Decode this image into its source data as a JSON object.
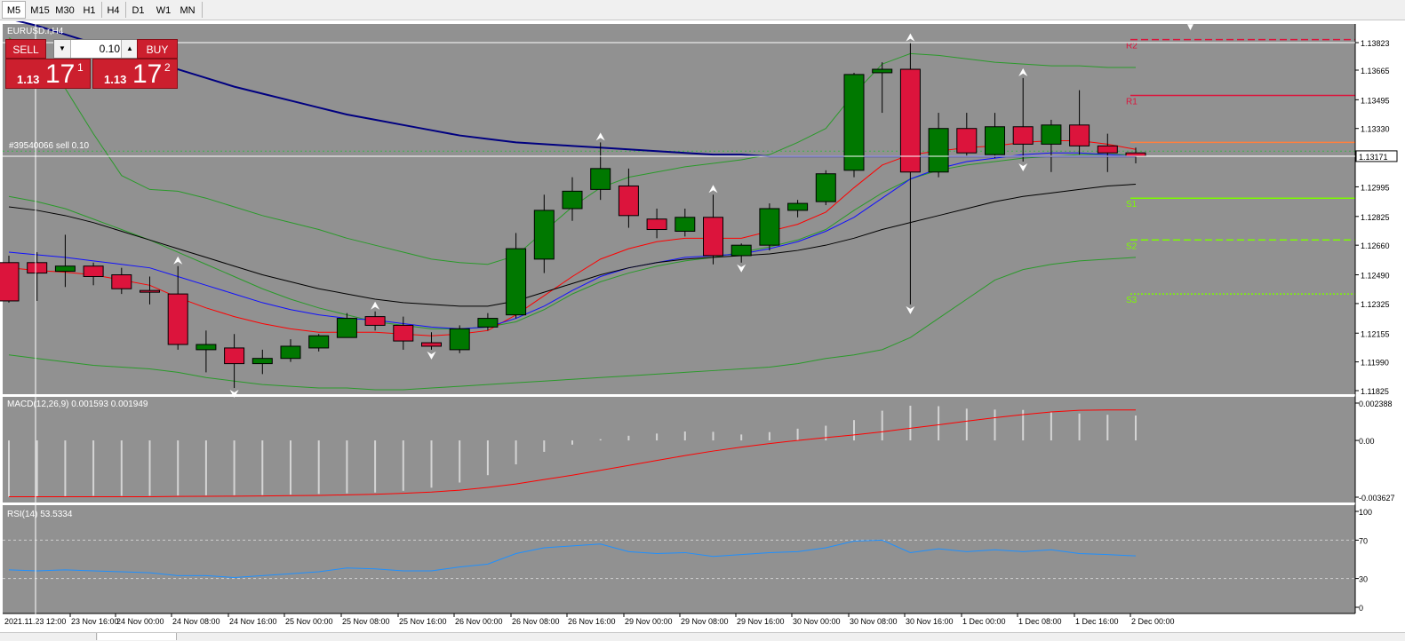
{
  "timeframes": {
    "items": [
      "M5",
      "M15",
      "M30",
      "H1",
      "H4",
      "D1",
      "W1",
      "MN"
    ],
    "active": "M5"
  },
  "chart_title": "EURUSD.r,H4",
  "trade_panel": {
    "sell_label": "SELL",
    "buy_label": "BUY",
    "lot": "0.10",
    "sell_prefix": "1.13",
    "sell_big": "17",
    "sell_sup": "1",
    "buy_prefix": "1.13",
    "buy_big": "17",
    "buy_sup": "2"
  },
  "order_label": "#39540066 sell 0.10",
  "colors": {
    "background": "#919191",
    "bull": "#007800",
    "bear": "#dc143c",
    "ma_fast": "#ff0000",
    "ma_mid": "#1010ff",
    "ma_slow": "#000000",
    "ma_long": "#000080",
    "bollinger": "#2a9a2a",
    "r_level": "#dc143c",
    "s_level": "#7cfc00",
    "rsi": "#1e90ff",
    "macd_signal": "#ff0000",
    "macd_hist": "#d4d4d4"
  },
  "chart_data": [
    {
      "type": "candlestick",
      "title": "EURUSD.r,H4",
      "y_ticks": [
        1.13823,
        1.13665,
        1.13495,
        1.1333,
        1.13171,
        1.12995,
        1.12825,
        1.1266,
        1.1249,
        1.12325,
        1.12155,
        1.1199,
        1.11825
      ],
      "ylim": [
        1.11825,
        1.13823
      ],
      "current_price": 1.13171,
      "x_labels": [
        "2021.11.23 12:00",
        "23 Nov 16:00",
        "24 Nov 00:00",
        "24 Nov 08:00",
        "24 Nov 16:00",
        "25 Nov 00:00",
        "25 Nov 08:00",
        "25 Nov 16:00",
        "26 Nov 00:00",
        "26 Nov 08:00",
        "26 Nov 16:00",
        "29 Nov 00:00",
        "29 Nov 08:00",
        "29 Nov 16:00",
        "30 Nov 00:00",
        "30 Nov 08:00",
        "30 Nov 16:00",
        "1 Dec 00:00",
        "1 Dec 08:00",
        "1 Dec 16:00",
        "2 Dec 00:00"
      ],
      "candles": [
        {
          "o": 1.1256,
          "h": 1.126,
          "l": 1.1233,
          "c": 1.1234
        },
        {
          "o": 1.1256,
          "h": 1.1262,
          "l": 1.1234,
          "c": 1.125
        },
        {
          "o": 1.1251,
          "h": 1.1272,
          "l": 1.1242,
          "c": 1.1254
        },
        {
          "o": 1.1254,
          "h": 1.1256,
          "l": 1.1243,
          "c": 1.1248
        },
        {
          "o": 1.1249,
          "h": 1.1253,
          "l": 1.1238,
          "c": 1.1241
        },
        {
          "o": 1.124,
          "h": 1.1248,
          "l": 1.1232,
          "c": 1.1239
        },
        {
          "o": 1.1238,
          "h": 1.1254,
          "l": 1.1206,
          "c": 1.1209
        },
        {
          "o": 1.1206,
          "h": 1.1217,
          "l": 1.1193,
          "c": 1.1209
        },
        {
          "o": 1.1207,
          "h": 1.1215,
          "l": 1.1184,
          "c": 1.1198
        },
        {
          "o": 1.1198,
          "h": 1.1206,
          "l": 1.1192,
          "c": 1.1201
        },
        {
          "o": 1.1201,
          "h": 1.1212,
          "l": 1.1199,
          "c": 1.1208
        },
        {
          "o": 1.1207,
          "h": 1.1215,
          "l": 1.1205,
          "c": 1.1214
        },
        {
          "o": 1.1213,
          "h": 1.1227,
          "l": 1.1213,
          "c": 1.1224
        },
        {
          "o": 1.1225,
          "h": 1.1228,
          "l": 1.1217,
          "c": 1.122
        },
        {
          "o": 1.122,
          "h": 1.1225,
          "l": 1.1206,
          "c": 1.1211
        },
        {
          "o": 1.121,
          "h": 1.1216,
          "l": 1.1206,
          "c": 1.1208
        },
        {
          "o": 1.1206,
          "h": 1.122,
          "l": 1.1204,
          "c": 1.1218
        },
        {
          "o": 1.1219,
          "h": 1.1227,
          "l": 1.1217,
          "c": 1.1224
        },
        {
          "o": 1.1226,
          "h": 1.1273,
          "l": 1.1224,
          "c": 1.1264
        },
        {
          "o": 1.1258,
          "h": 1.1295,
          "l": 1.125,
          "c": 1.1286
        },
        {
          "o": 1.1287,
          "h": 1.1305,
          "l": 1.128,
          "c": 1.1297
        },
        {
          "o": 1.1298,
          "h": 1.1325,
          "l": 1.1292,
          "c": 1.131
        },
        {
          "o": 1.13,
          "h": 1.131,
          "l": 1.1276,
          "c": 1.1283
        },
        {
          "o": 1.1281,
          "h": 1.1287,
          "l": 1.127,
          "c": 1.1275
        },
        {
          "o": 1.1274,
          "h": 1.1287,
          "l": 1.1271,
          "c": 1.1282
        },
        {
          "o": 1.1282,
          "h": 1.1295,
          "l": 1.1255,
          "c": 1.126
        },
        {
          "o": 1.126,
          "h": 1.1267,
          "l": 1.1256,
          "c": 1.1266
        },
        {
          "o": 1.1266,
          "h": 1.129,
          "l": 1.1263,
          "c": 1.1287
        },
        {
          "o": 1.1286,
          "h": 1.1292,
          "l": 1.1282,
          "c": 1.129
        },
        {
          "o": 1.1291,
          "h": 1.1309,
          "l": 1.1289,
          "c": 1.1307
        },
        {
          "o": 1.1309,
          "h": 1.1365,
          "l": 1.1305,
          "c": 1.1364
        },
        {
          "o": 1.1365,
          "h": 1.1371,
          "l": 1.1342,
          "c": 1.1367
        },
        {
          "o": 1.1367,
          "h": 1.1382,
          "l": 1.1232,
          "c": 1.1308
        },
        {
          "o": 1.1308,
          "h": 1.1342,
          "l": 1.1305,
          "c": 1.1333
        },
        {
          "o": 1.1333,
          "h": 1.1342,
          "l": 1.1317,
          "c": 1.1319
        },
        {
          "o": 1.1318,
          "h": 1.1342,
          "l": 1.1316,
          "c": 1.1334
        },
        {
          "o": 1.1334,
          "h": 1.1362,
          "l": 1.1314,
          "c": 1.1324
        },
        {
          "o": 1.1324,
          "h": 1.1338,
          "l": 1.1308,
          "c": 1.1335
        },
        {
          "o": 1.1335,
          "h": 1.1355,
          "l": 1.1318,
          "c": 1.1323
        },
        {
          "o": 1.1323,
          "h": 1.133,
          "l": 1.1308,
          "c": 1.1319
        },
        {
          "o": 1.1319,
          "h": 1.1322,
          "l": 1.1313,
          "c": 1.13171
        }
      ],
      "moving_averages": [
        {
          "name": "MA fast",
          "color": "#ff0000",
          "values": [
            1.1253,
            1.12515,
            1.12505,
            1.1249,
            1.1246,
            1.1243,
            1.1236,
            1.123,
            1.1225,
            1.1221,
            1.1218,
            1.1216,
            1.1216,
            1.1216,
            1.1215,
            1.1214,
            1.1215,
            1.1217,
            1.1226,
            1.1237,
            1.1248,
            1.1258,
            1.1264,
            1.1268,
            1.127,
            1.127,
            1.127,
            1.1274,
            1.1278,
            1.1285,
            1.1299,
            1.1312,
            1.1318,
            1.132,
            1.1322,
            1.1323,
            1.1325,
            1.1326,
            1.1326,
            1.1324,
            1.1321
          ]
        },
        {
          "name": "MA mid",
          "color": "#1010ff",
          "values": [
            1.1262,
            1.12605,
            1.1259,
            1.1257,
            1.1255,
            1.1253,
            1.1248,
            1.1243,
            1.1238,
            1.1233,
            1.1229,
            1.1226,
            1.1224,
            1.1223,
            1.1221,
            1.1219,
            1.1218,
            1.1219,
            1.1224,
            1.1231,
            1.124,
            1.1248,
            1.1253,
            1.1256,
            1.1259,
            1.126,
            1.1261,
            1.1264,
            1.1268,
            1.1274,
            1.1282,
            1.1293,
            1.1304,
            1.131,
            1.1314,
            1.1316,
            1.1318,
            1.1319,
            1.1319,
            1.1318,
            1.1317
          ]
        },
        {
          "name": "MA slow",
          "color": "#000000",
          "values": [
            1.1288,
            1.1286,
            1.1283,
            1.1279,
            1.1274,
            1.1269,
            1.1264,
            1.1259,
            1.1254,
            1.1249,
            1.1245,
            1.1241,
            1.1238,
            1.1235,
            1.1233,
            1.1232,
            1.1231,
            1.1231,
            1.1234,
            1.1239,
            1.1244,
            1.1249,
            1.1253,
            1.1256,
            1.1258,
            1.1259,
            1.126,
            1.1261,
            1.1263,
            1.1266,
            1.127,
            1.1275,
            1.1279,
            1.1283,
            1.1287,
            1.1291,
            1.1294,
            1.1296,
            1.1298,
            1.13,
            1.1301
          ]
        },
        {
          "name": "MA long",
          "color": "#000080",
          "values": [
            1.1396,
            1.1392,
            1.1387,
            1.1382,
            1.1377,
            1.1372,
            1.1367,
            1.1362,
            1.1357,
            1.1353,
            1.1349,
            1.1345,
            1.1341,
            1.1338,
            1.1335,
            1.1332,
            1.1329,
            1.1327,
            1.1325,
            1.1324,
            1.1323,
            1.1322,
            1.1321,
            1.132,
            1.1319,
            1.1318,
            1.1318,
            1.1317,
            1.1317,
            1.1317,
            1.1317,
            1.1317,
            1.1317,
            1.1317,
            1.1317,
            1.1317,
            1.1317,
            1.1317,
            1.1317,
            1.1317,
            1.1317
          ]
        }
      ],
      "bollinger": {
        "upper": [
          1.1385,
          1.1375,
          1.1356,
          1.133,
          1.1306,
          1.1298,
          1.1297,
          1.1293,
          1.1288,
          1.1283,
          1.1279,
          1.1275,
          1.127,
          1.1266,
          1.1262,
          1.1258,
          1.1256,
          1.1255,
          1.126,
          1.1274,
          1.1288,
          1.1299,
          1.1305,
          1.1308,
          1.1311,
          1.1313,
          1.1315,
          1.1318,
          1.1325,
          1.1333,
          1.1353,
          1.137,
          1.1376,
          1.1375,
          1.1373,
          1.1371,
          1.137,
          1.1369,
          1.1369,
          1.1368,
          1.1368
        ],
        "middle": [
          1.1294,
          1.1291,
          1.1287,
          1.1281,
          1.1275,
          1.1269,
          1.1262,
          1.1255,
          1.1248,
          1.1241,
          1.1235,
          1.123,
          1.1226,
          1.1222,
          1.122,
          1.1218,
          1.1218,
          1.1219,
          1.1222,
          1.1229,
          1.1238,
          1.1245,
          1.125,
          1.1254,
          1.1257,
          1.1259,
          1.1262,
          1.1265,
          1.1269,
          1.1275,
          1.1286,
          1.1296,
          1.1304,
          1.1309,
          1.1312,
          1.1314,
          1.1316,
          1.1317,
          1.1318,
          1.1318,
          1.1318
        ],
        "lower": [
          1.1203,
          1.1201,
          1.1199,
          1.1197,
          1.1196,
          1.1195,
          1.1193,
          1.119,
          1.1188,
          1.1186,
          1.1185,
          1.1184,
          1.1184,
          1.1183,
          1.1183,
          1.1184,
          1.1185,
          1.1186,
          1.1187,
          1.1188,
          1.1189,
          1.119,
          1.1191,
          1.1192,
          1.1193,
          1.1194,
          1.1195,
          1.1196,
          1.1198,
          1.1201,
          1.1203,
          1.1206,
          1.1213,
          1.1224,
          1.1235,
          1.1246,
          1.1252,
          1.1255,
          1.1257,
          1.1258,
          1.1259
        ]
      },
      "fractals_up": [
        6,
        13,
        21,
        25,
        32,
        36
      ],
      "fractals_down": [
        8,
        15,
        26,
        32,
        36
      ],
      "pivot_levels": [
        {
          "name": "R2",
          "value": 1.1384,
          "style": "dashed",
          "color": "#dc143c"
        },
        {
          "name": "R1",
          "value": 1.1352,
          "style": "solid",
          "color": "#dc143c"
        },
        {
          "name": "",
          "value": 1.1325,
          "style": "solid",
          "color": "#ff8040"
        },
        {
          "name": "S1",
          "value": 1.1293,
          "style": "solid",
          "color": "#7cfc00"
        },
        {
          "name": "S2",
          "value": 1.1269,
          "style": "dashed",
          "color": "#7cfc00"
        },
        {
          "name": "S3",
          "value": 1.1238,
          "style": "dotted",
          "color": "#7cfc00"
        }
      ],
      "order_price": 1.132
    },
    {
      "type": "bar",
      "title": "MACD(12,26,9) 0.001593 0.001949",
      "y_ticks": [
        "0.002388",
        "0.00",
        "-0.003627"
      ],
      "ylim": [
        -0.003627,
        0.002388
      ],
      "histogram": [
        -0.0036,
        -0.00358,
        -0.00356,
        -0.00354,
        -0.00354,
        -0.00353,
        -0.00352,
        -0.00351,
        -0.0035,
        -0.00349,
        -0.00346,
        -0.00342,
        -0.00338,
        -0.00333,
        -0.00322,
        -0.00302,
        -0.00269,
        -0.00222,
        -0.00153,
        -0.00073,
        -0.00027,
        8e-05,
        0.0003,
        0.00044,
        0.00057,
        0.00055,
        0.00038,
        0.00053,
        0.00075,
        0.00094,
        0.0013,
        0.0019,
        0.00222,
        0.00219,
        0.00203,
        0.00197,
        0.00195,
        0.00184,
        0.00172,
        0.00164,
        0.00159
      ],
      "signal": [
        -0.0036,
        -0.0036,
        -0.0036,
        -0.0036,
        -0.0036,
        -0.0036,
        -0.00358,
        -0.00357,
        -0.00356,
        -0.00355,
        -0.00353,
        -0.00351,
        -0.00348,
        -0.00344,
        -0.00338,
        -0.0033,
        -0.00318,
        -0.003,
        -0.00278,
        -0.0025,
        -0.00222,
        -0.00191,
        -0.0016,
        -0.00128,
        -0.00097,
        -0.00068,
        -0.00043,
        -0.0002,
        0.0,
        0.00018,
        0.00035,
        0.00055,
        0.00078,
        0.001,
        0.00123,
        0.00145,
        0.00165,
        0.00182,
        0.00193,
        0.00195,
        0.00195
      ]
    },
    {
      "type": "line",
      "title": "RSI(14) 53.5334",
      "y_ticks": [
        "100",
        "70",
        "30",
        "0"
      ],
      "ylim": [
        0,
        100
      ],
      "levels": [
        70,
        30
      ],
      "values": [
        39,
        38,
        39,
        38,
        37,
        36,
        33,
        33,
        31,
        33,
        35,
        37,
        41,
        40,
        38,
        38,
        42,
        45,
        56,
        62,
        64,
        66,
        58,
        56,
        57,
        53,
        55,
        57,
        58,
        62,
        69,
        70,
        57,
        61,
        58,
        60,
        58,
        60,
        56,
        55,
        53.5334
      ]
    }
  ]
}
